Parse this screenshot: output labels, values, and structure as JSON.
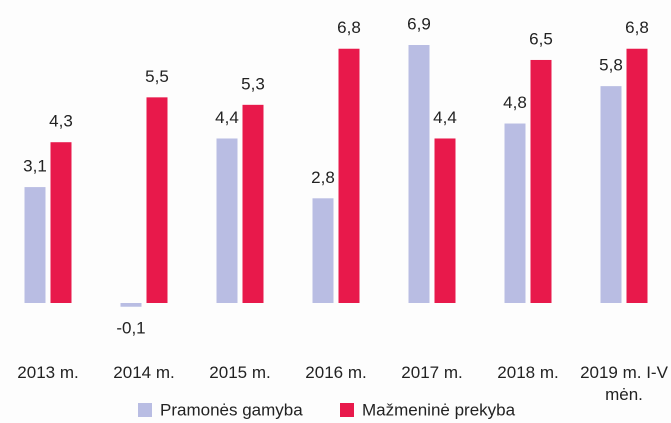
{
  "chart_data": {
    "type": "bar",
    "categories": [
      "2013 m.",
      "2014 m.",
      "2015 m.",
      "2016 m.",
      "2017 m.",
      "2018 m.",
      "2019 m. I-V mėn."
    ],
    "series": [
      {
        "name": "Pramonės gamyba",
        "color": "#b9bde3",
        "values": [
          3.1,
          -0.1,
          4.4,
          2.8,
          6.9,
          4.8,
          5.8
        ],
        "value_labels": [
          "3,1",
          "-0,1",
          "4,4",
          "2,8",
          "6,9",
          "4,8",
          "5,8"
        ]
      },
      {
        "name": "Mažmeninė prekyba",
        "color": "#e8194b",
        "values": [
          4.3,
          5.5,
          5.3,
          6.8,
          4.4,
          6.5,
          6.8
        ],
        "value_labels": [
          "4,3",
          "5,5",
          "5,3",
          "6,8",
          "4,4",
          "6,5",
          "6,8"
        ]
      }
    ],
    "legend": "bottom"
  }
}
